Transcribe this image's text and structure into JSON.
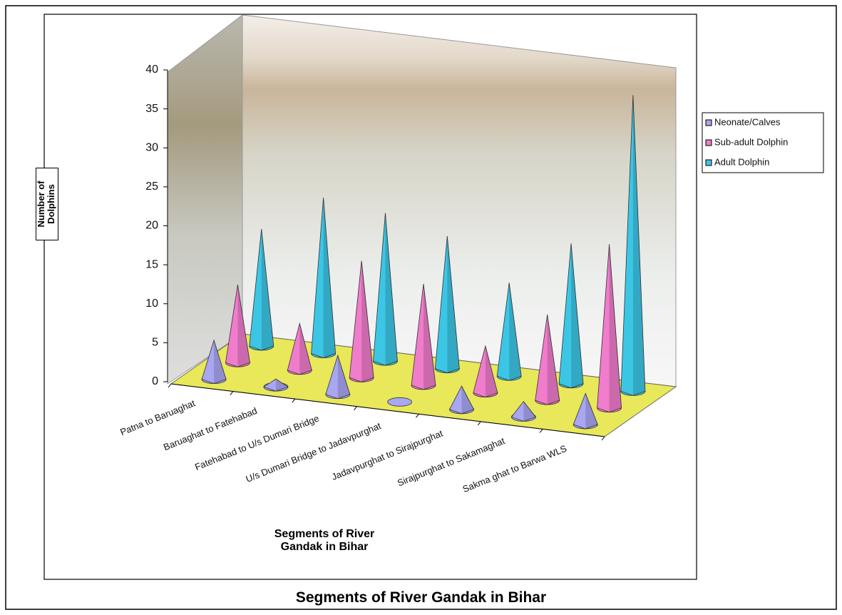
{
  "chart_data": {
    "type": "cone3d",
    "title": "Segments of River Gandak in Bihar",
    "x_label": "Segments of River Gandak in Bihar",
    "y_label": "Number of Dolphins",
    "categories": [
      "Patna to Baruaghat",
      "Baruaghat to Fatehabad",
      "Fatehabad to U/s Dumari Bridge",
      "U/s Dumari Bridge to Jadavpurghat",
      "Jadavpurghat to Sirajpurghat",
      "Sirajpurghat to Sakamaghat",
      "Sakma ghat to Barwa WLS"
    ],
    "series": [
      {
        "name": "Neonate/Calves",
        "color": "#a9a6f2",
        "values": [
          5,
          1,
          5,
          0,
          3,
          2,
          4
        ]
      },
      {
        "name": "Sub-adult Dolphin",
        "color": "#f07ccc",
        "values": [
          10,
          6,
          15,
          13,
          6,
          11,
          21
        ]
      },
      {
        "name": "Adult Dolphin",
        "color": "#3cc6e6",
        "values": [
          15,
          20,
          19,
          17,
          12,
          18,
          38
        ]
      }
    ],
    "ylim": [
      0,
      40
    ],
    "yticks": [
      0,
      5,
      10,
      15,
      20,
      25,
      30,
      35,
      40
    ],
    "legend": "right"
  }
}
